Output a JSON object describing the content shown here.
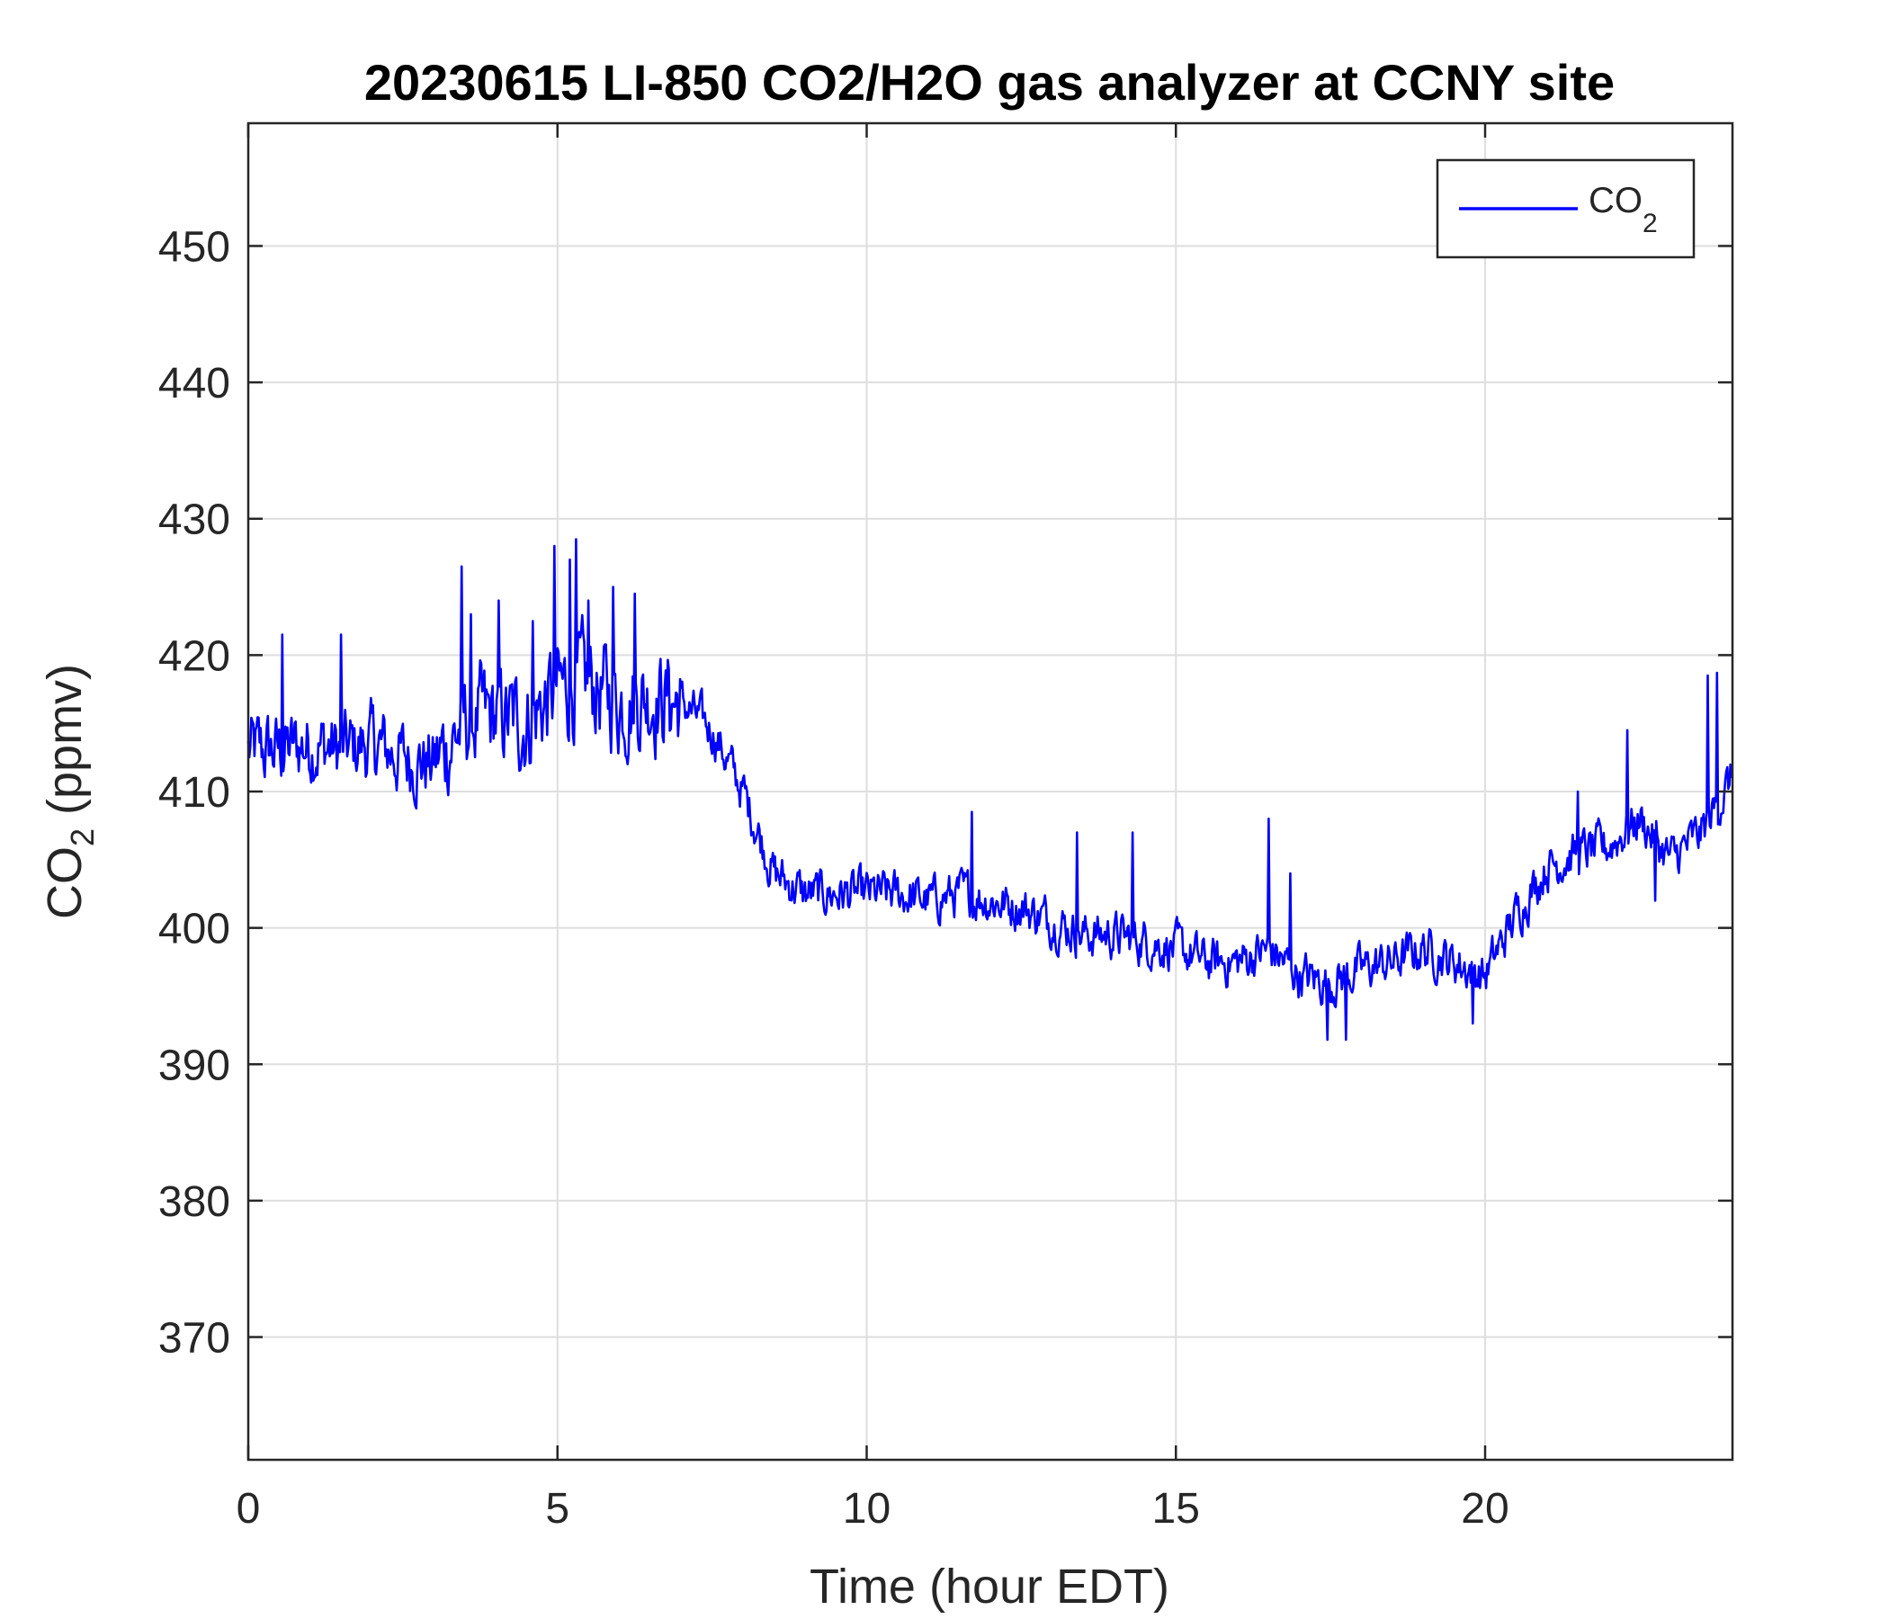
{
  "chart_data": {
    "type": "line",
    "title": "20230615 LI-850 CO2/H2O gas analyzer at CCNY site",
    "xlabel": "Time (hour EDT)",
    "ylabel": "CO₂ (ppmv)",
    "xlim": [
      0,
      24
    ],
    "ylim": [
      361,
      459
    ],
    "xticks": [
      0,
      5,
      10,
      15,
      20
    ],
    "yticks": [
      370,
      380,
      390,
      400,
      410,
      420,
      430,
      440,
      450
    ],
    "grid": true,
    "legend_position": "top-right",
    "series": [
      {
        "name": "CO₂",
        "color": "#0000ff",
        "x": [
          0,
          0.5,
          1,
          1.5,
          2,
          2.5,
          3,
          3.5,
          4,
          4.5,
          5,
          5.5,
          6,
          6.5,
          7,
          7.5,
          8,
          8.5,
          9,
          9.5,
          10,
          10.5,
          11,
          11.5,
          12,
          12.5,
          13,
          13.5,
          14,
          14.5,
          15,
          15.5,
          16,
          16.5,
          17,
          17.5,
          18,
          18.5,
          19,
          19.5,
          20,
          20.5,
          21,
          21.5,
          22,
          22.5,
          23,
          23.5,
          24
        ],
        "y": [
          413,
          413,
          413.5,
          413,
          413.5,
          412.5,
          412,
          415,
          415.5,
          415,
          417.5,
          418,
          416.5,
          417,
          416.5,
          414.5,
          410,
          404,
          402.5,
          402.5,
          402.5,
          402.5,
          402,
          402.5,
          402,
          401.5,
          400.5,
          399.5,
          399.5,
          399,
          398.5,
          397.5,
          397.5,
          398.5,
          396.5,
          396,
          397,
          397.5,
          398.5,
          397.5,
          396.5,
          401,
          404.5,
          405.5,
          406,
          408,
          405,
          407,
          411
        ]
      }
    ],
    "noise": [
      {
        "x_from": 0,
        "x_to": 3,
        "amp": 3
      },
      {
        "x_from": 3,
        "x_to": 7,
        "amp": 4
      },
      {
        "x_from": 7,
        "x_to": 9,
        "amp": 1.8
      },
      {
        "x_from": 9,
        "x_to": 24,
        "amp": 1.8
      }
    ],
    "spikes": [
      {
        "x": 0.55,
        "y": 421.5
      },
      {
        "x": 1.5,
        "y": 421.5
      },
      {
        "x": 3.45,
        "y": 426.5
      },
      {
        "x": 3.6,
        "y": 423
      },
      {
        "x": 4.05,
        "y": 424
      },
      {
        "x": 4.6,
        "y": 422.5
      },
      {
        "x": 4.95,
        "y": 428
      },
      {
        "x": 5.2,
        "y": 427
      },
      {
        "x": 5.3,
        "y": 428.5
      },
      {
        "x": 5.5,
        "y": 424
      },
      {
        "x": 5.9,
        "y": 425
      },
      {
        "x": 6.25,
        "y": 424.5
      },
      {
        "x": 6.8,
        "y": 419
      },
      {
        "x": 11.7,
        "y": 408.5
      },
      {
        "x": 13.4,
        "y": 407
      },
      {
        "x": 14.3,
        "y": 407
      },
      {
        "x": 16.5,
        "y": 408
      },
      {
        "x": 16.85,
        "y": 404
      },
      {
        "x": 17.45,
        "y": 391.8
      },
      {
        "x": 17.75,
        "y": 391.8
      },
      {
        "x": 19.8,
        "y": 393
      },
      {
        "x": 21.5,
        "y": 410
      },
      {
        "x": 22.3,
        "y": 414.5
      },
      {
        "x": 22.75,
        "y": 402
      },
      {
        "x": 23.6,
        "y": 418.5
      },
      {
        "x": 23.75,
        "y": 418.7
      }
    ]
  },
  "legend": {
    "entry_base": "CO",
    "entry_sub": "2"
  },
  "axes": {
    "ylabel_base": "CO",
    "ylabel_sub": "2",
    "ylabel_rest": " (ppmv)"
  }
}
